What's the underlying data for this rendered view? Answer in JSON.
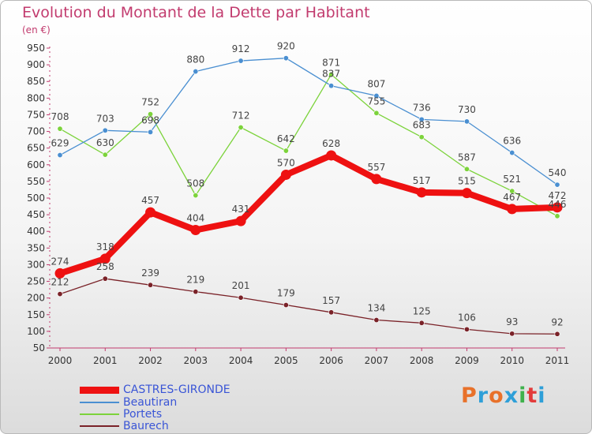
{
  "title": "Evolution du Montant de la Dette par Habitant",
  "subtitle": "(en €)",
  "logo": {
    "text": "Proxiti",
    "colors": [
      "#e8712a",
      "#2e9fd8",
      "#e8712a",
      "#2e9fd8",
      "#3fb14c",
      "#e33b3b",
      "#2e9fd8"
    ]
  },
  "chart_data": {
    "type": "line",
    "title": "Evolution du Montant de la Dette par Habitant",
    "ylabel": "(en €)",
    "xlabel": "",
    "x": [
      "2000",
      "2001",
      "2002",
      "2003",
      "2004",
      "2005",
      "2006",
      "2007",
      "2008",
      "2009",
      "2010",
      "2011"
    ],
    "ylim": [
      50,
      950
    ],
    "yticks": [
      50,
      100,
      150,
      200,
      250,
      300,
      350,
      400,
      450,
      500,
      550,
      600,
      650,
      700,
      750,
      800,
      850,
      900,
      950
    ],
    "grid": false,
    "legend": "bottom-left",
    "series": [
      {
        "name": "CASTRES-GIRONDE",
        "color": "#ee1111",
        "values": [
          274,
          318,
          457,
          404,
          431,
          570,
          628,
          557,
          517,
          515,
          467,
          472
        ],
        "labels": [
          "274",
          "318",
          "457",
          "404",
          "431",
          "570",
          "628",
          "557",
          "517",
          "515",
          "467",
          "472"
        ]
      },
      {
        "name": "Beautiran",
        "color": "#4a8fd1",
        "values": [
          629,
          703,
          698,
          880,
          912,
          920,
          837,
          807,
          736,
          730,
          636,
          540
        ],
        "labels": [
          "629",
          "703",
          "698",
          "880",
          "912",
          "920",
          "837",
          "807",
          "736",
          "730",
          "636",
          "540"
        ]
      },
      {
        "name": "Portets",
        "color": "#7cd33b",
        "values": [
          708,
          630,
          752,
          508,
          712,
          642,
          871,
          755,
          683,
          587,
          521,
          446
        ],
        "labels": [
          "708",
          "630",
          "752",
          "508",
          "712",
          "642",
          "871",
          "755",
          "683",
          "587",
          "521",
          "446"
        ]
      },
      {
        "name": "Baurech",
        "color": "#7a2228",
        "values": [
          212,
          258,
          239,
          219,
          201,
          179,
          157,
          134,
          125,
          106,
          93,
          92
        ],
        "labels": [
          "212",
          "258",
          "239",
          "219",
          "201",
          "179",
          "157",
          "134",
          "125",
          "106",
          "93",
          "92"
        ]
      }
    ]
  }
}
